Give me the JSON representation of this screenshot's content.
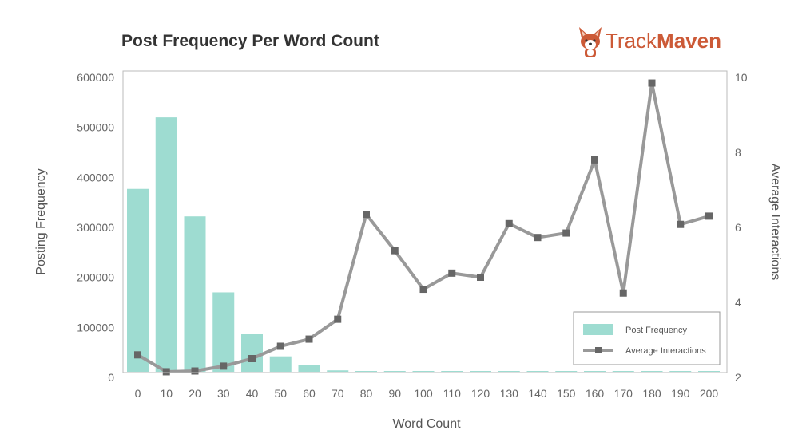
{
  "title": "Post Frequency Per Word Count",
  "brand": {
    "name_part1": "Track",
    "name_part2": "Maven",
    "logo_icon": "corgi-dog-icon",
    "color": "#cc5a37"
  },
  "chart_data": {
    "type": "bar",
    "title": "Post Frequency Per Word Count",
    "xlabel": "Word Count",
    "ylabel": "Posting Frequency",
    "y2label": "Average Interactions",
    "categories": [
      "0",
      "10",
      "20",
      "30",
      "40",
      "50",
      "60",
      "70",
      "80",
      "90",
      "100",
      "110",
      "120",
      "130",
      "140",
      "150",
      "160",
      "170",
      "180",
      "190",
      "200"
    ],
    "ylim": [
      0,
      600000
    ],
    "yticks": [
      "0",
      "100000",
      "200000",
      "300000",
      "400000",
      "500000",
      "600000"
    ],
    "y2lim": [
      2,
      10
    ],
    "y2ticks": [
      "2",
      "4",
      "6",
      "8",
      "10"
    ],
    "legend_position": "bottom-right",
    "grid": false,
    "series": [
      {
        "name": "Post Frequency",
        "type": "bar",
        "axis": "left",
        "color": "#9edcd1",
        "values": [
          377000,
          520000,
          322000,
          170000,
          87000,
          42000,
          24000,
          14000,
          9000,
          6000,
          4500,
          3500,
          3000,
          2500,
          2000,
          2000,
          2000,
          1500,
          1500,
          1500,
          2000
        ]
      },
      {
        "name": "Average Interactions",
        "type": "line",
        "axis": "right",
        "color": "#999999",
        "marker_color": "#666666",
        "values": [
          2.6,
          2.15,
          2.17,
          2.3,
          2.5,
          2.83,
          3.02,
          3.55,
          6.35,
          5.38,
          4.35,
          4.78,
          4.67,
          6.1,
          5.73,
          5.85,
          7.8,
          4.25,
          9.85,
          6.08,
          6.3
        ]
      }
    ]
  }
}
